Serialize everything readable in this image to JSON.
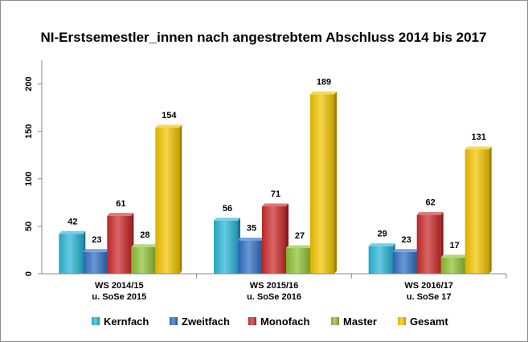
{
  "chart_data": {
    "type": "bar",
    "title": "NI-Erstsemestler_innen nach angestrebtem Abschluss 2014 bis 2017",
    "xlabel": "",
    "ylabel": "",
    "ylim": [
      0,
      225
    ],
    "yticks": [
      "0",
      "50",
      "100",
      "150",
      "200"
    ],
    "categories": [
      [
        "WS 2014/15",
        "u. SoSe 2015"
      ],
      [
        "WS 2015/16",
        "u. SoSe 2016"
      ],
      [
        "WS 2016/17",
        "u. SoSe 17"
      ]
    ],
    "series": [
      {
        "name": "Kernfach",
        "values": [
          42,
          56,
          29
        ],
        "color": "#29b6d8"
      },
      {
        "name": "Zweitfach",
        "values": [
          23,
          35,
          23
        ],
        "color": "#2e6fc4"
      },
      {
        "name": "Monofach",
        "values": [
          61,
          71,
          62
        ],
        "color": "#cc2a2a"
      },
      {
        "name": "Master",
        "values": [
          28,
          27,
          17
        ],
        "color": "#8fc033"
      },
      {
        "name": "Gesamt",
        "values": [
          154,
          189,
          131
        ],
        "color": "#f2c500"
      }
    ],
    "grid": false,
    "legend": "bottom"
  }
}
